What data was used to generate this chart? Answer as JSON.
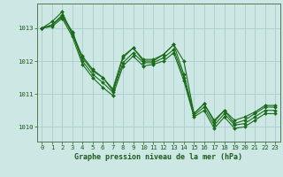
{
  "title": "Graphe pression niveau de la mer (hPa)",
  "background_color": "#cde8e4",
  "grid_color": "#a8ccca",
  "line_color": "#1a6b1a",
  "spine_color": "#557755",
  "tick_color": "#1a5c1a",
  "xlim": [
    -0.5,
    23.5
  ],
  "ylim": [
    1009.55,
    1013.75
  ],
  "yticks": [
    1010,
    1011,
    1012,
    1013
  ],
  "xticks": [
    0,
    1,
    2,
    3,
    4,
    5,
    6,
    7,
    8,
    9,
    10,
    11,
    12,
    13,
    14,
    15,
    16,
    17,
    18,
    19,
    20,
    21,
    22,
    23
  ],
  "series": [
    [
      1013.0,
      1013.1,
      1013.4,
      1012.9,
      1012.1,
      1011.7,
      1011.5,
      1011.1,
      1012.1,
      1012.4,
      1012.0,
      1012.0,
      1012.2,
      1012.5,
      1012.0,
      1010.4,
      1010.7,
      1010.15,
      1010.5,
      1010.1,
      1010.2,
      1010.4,
      1010.6,
      1010.6
    ],
    [
      1013.0,
      1013.1,
      1013.35,
      1012.85,
      1012.0,
      1011.6,
      1011.35,
      1011.05,
      1011.95,
      1012.25,
      1011.95,
      1011.95,
      1012.1,
      1012.35,
      1011.5,
      1010.35,
      1010.6,
      1010.05,
      1010.4,
      1010.05,
      1010.1,
      1010.3,
      1010.5,
      1010.5
    ],
    [
      1013.0,
      1013.2,
      1013.5,
      1012.8,
      1012.15,
      1011.75,
      1011.5,
      1011.15,
      1012.15,
      1012.4,
      1012.05,
      1012.05,
      1012.2,
      1012.5,
      1011.6,
      1010.4,
      1010.7,
      1010.2,
      1010.5,
      1010.2,
      1010.3,
      1010.45,
      1010.65,
      1010.65
    ],
    [
      1013.0,
      1013.05,
      1013.3,
      1012.75,
      1011.9,
      1011.5,
      1011.2,
      1010.95,
      1011.85,
      1012.15,
      1011.85,
      1011.9,
      1012.0,
      1012.25,
      1011.4,
      1010.3,
      1010.5,
      1009.95,
      1010.3,
      1009.95,
      1010.0,
      1010.2,
      1010.4,
      1010.4
    ]
  ],
  "title_fontsize": 6.0,
  "tick_fontsize": 5.2
}
